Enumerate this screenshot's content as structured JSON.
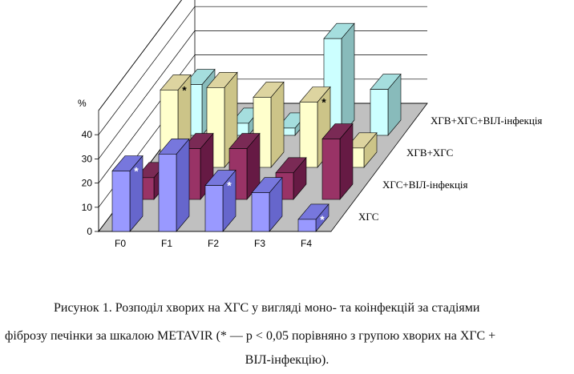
{
  "chart_data": {
    "type": "bar",
    "ylabel": "%",
    "ylim": [
      0,
      40
    ],
    "yticks": [
      0,
      10,
      20,
      30,
      40
    ],
    "categories": [
      "F0",
      "F1",
      "F2",
      "F3",
      "F4"
    ],
    "series": [
      {
        "name": "ХГС",
        "values": [
          25,
          32,
          19,
          16,
          5
        ],
        "marks": [
          "*",
          "",
          "*",
          "",
          "*"
        ],
        "colors": {
          "front": "#9999ff",
          "side": "#6666cc",
          "top": "#7777dd"
        }
      },
      {
        "name": "ХГС+ВІЛ-інфекція",
        "values": [
          9,
          21,
          21,
          11,
          25
        ],
        "marks": [
          "",
          "",
          "",
          "",
          ""
        ],
        "colors": {
          "front": "#993366",
          "side": "#661a44",
          "top": "#7a2a55"
        }
      },
      {
        "name": "ХГВ+ХГС",
        "values": [
          32,
          33,
          29,
          27,
          8
        ],
        "marks": [
          "*",
          "",
          "",
          "*",
          ""
        ],
        "colors": {
          "front": "#ffffcc",
          "side": "#ccc488",
          "top": "#ddd4a0"
        }
      },
      {
        "name": "ХГВ+ХГС+ВІЛ-інфекція",
        "values": [
          21,
          5,
          3,
          40,
          19
        ],
        "marks": [
          "",
          "",
          "",
          "",
          ""
        ],
        "colors": {
          "front": "#ccffff",
          "side": "#88bbbb",
          "top": "#a5dede"
        }
      }
    ],
    "grid": true,
    "legend": "series labels on depth axis"
  },
  "caption": {
    "line1": "Рисунок 1. Розподіл хворих на ХГС у вигляді моно- та коінфекцій за стадіями",
    "line2": "фіброзу печінки за шкалою METAVIR (* — р < 0,05 порівняно з групою хворих на ХГС +",
    "line3": "ВІЛ-інфекцію)."
  }
}
